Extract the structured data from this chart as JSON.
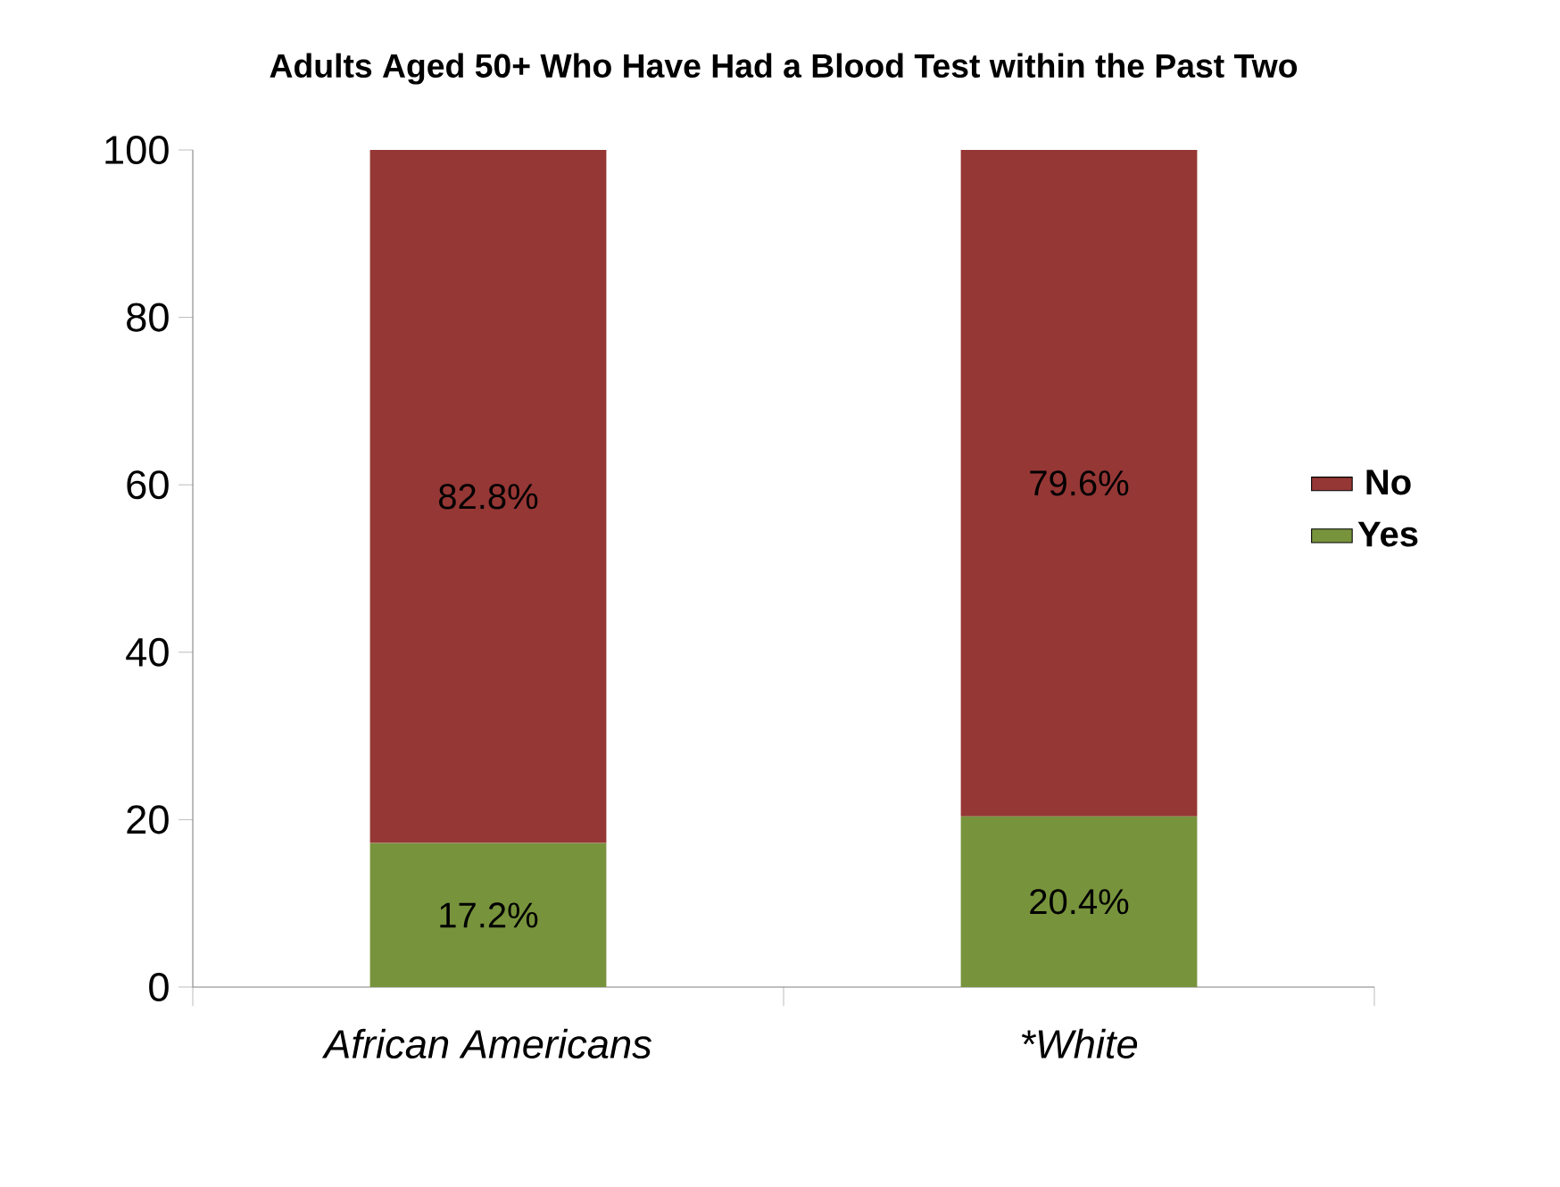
{
  "chart_data": {
    "type": "bar",
    "title": "Adults Aged 50+ Who Have Had a Blood Test within the Past Two",
    "categories": [
      "African Americans",
      "*White"
    ],
    "stacked": true,
    "series": [
      {
        "name": "Yes",
        "color": "#77933c",
        "values": [
          17.2,
          20.4
        ],
        "value_labels": [
          "17.2%",
          "20.4%"
        ]
      },
      {
        "name": "No",
        "color": "#953735",
        "values": [
          82.8,
          79.6
        ],
        "value_labels": [
          "82.8%",
          "79.6%"
        ]
      }
    ],
    "ylim": [
      0,
      100
    ],
    "yticks": [
      0,
      20,
      40,
      60,
      80,
      100
    ],
    "grid": false,
    "legend": "right"
  }
}
